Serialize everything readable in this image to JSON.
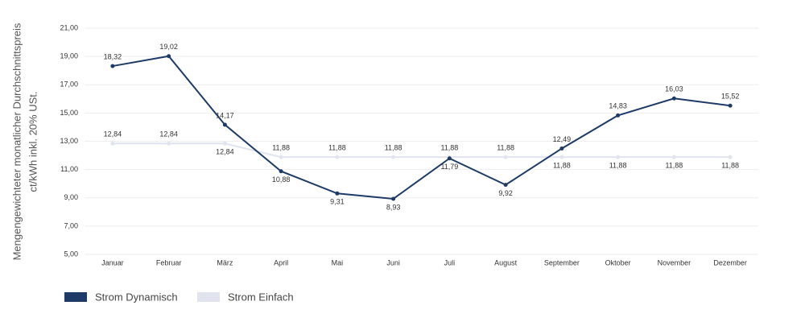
{
  "chart_data": {
    "type": "line",
    "y_label": [
      "Mengengewichteter monatlicher Durchschnittspreis",
      "ct/kWh inkl. 20% USt."
    ],
    "categories": [
      "Januar",
      "Februar",
      "März",
      "April",
      "Mai",
      "Juni",
      "Juli",
      "August",
      "September",
      "Oktober",
      "November",
      "Dezember"
    ],
    "series": [
      {
        "name": "Strom Dynamisch",
        "color": "#1e3a66",
        "values": [
          18.32,
          19.02,
          14.17,
          10.88,
          9.31,
          8.93,
          11.79,
          9.92,
          12.49,
          14.83,
          16.03,
          15.52
        ],
        "value_labels": [
          "18,32",
          "19,02",
          "14,17",
          "10,88",
          "9,31",
          "8,93",
          "11,79",
          "9,92",
          "12,49",
          "14,83",
          "16,03",
          "15,52"
        ]
      },
      {
        "name": "Strom Einfach",
        "color": "#e1e4ee",
        "values": [
          12.84,
          12.84,
          12.84,
          11.88,
          11.88,
          11.88,
          11.88,
          11.88,
          11.88,
          11.88,
          11.88,
          11.88
        ],
        "value_labels": [
          "12,84",
          "12,84",
          "12,84",
          "11,88",
          "11,88",
          "11,88",
          "11,88",
          "11,88",
          "11,88",
          "11,88",
          "11,88",
          "11,88"
        ]
      }
    ],
    "ylim": [
      5,
      21
    ],
    "yticks": [
      {
        "value": 5,
        "label": "5,00"
      },
      {
        "value": 7,
        "label": "7,00"
      },
      {
        "value": 9,
        "label": "9,00"
      },
      {
        "value": 11,
        "label": "11,00"
      },
      {
        "value": 13,
        "label": "13,00"
      },
      {
        "value": 15,
        "label": "15,00"
      },
      {
        "value": 17,
        "label": "17,00"
      },
      {
        "value": 19,
        "label": "19,00"
      },
      {
        "value": 21,
        "label": "21,00"
      }
    ],
    "grid": true,
    "legend": "bottom-left"
  }
}
